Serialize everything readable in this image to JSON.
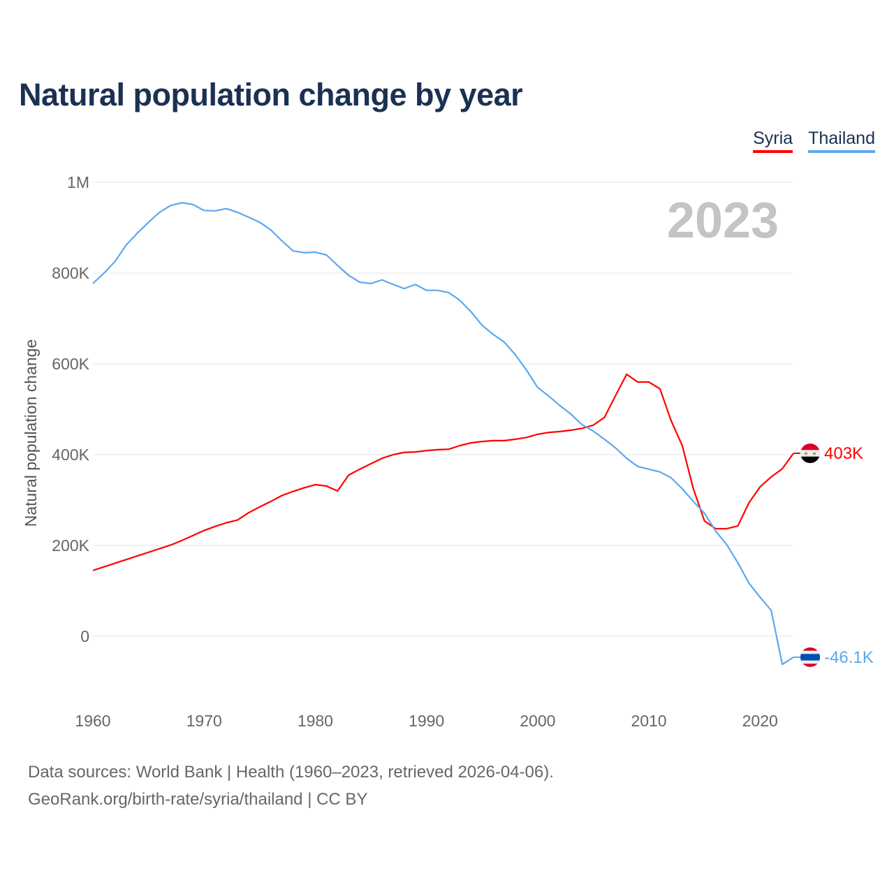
{
  "title": "Natural population change by year",
  "footer": {
    "line1": "Data sources: World Bank | Health (1960–2023, retrieved 2026-04-06).",
    "line2": "GeoRank.org/birth-rate/syria/thailand | CC BY"
  },
  "chart_data": {
    "type": "line",
    "title": "Natural population change by year",
    "xlabel": "",
    "ylabel": "Natural population change",
    "year_watermark": "2023",
    "xlim": [
      1960,
      2023
    ],
    "ylim": [
      -150000,
      1000000
    ],
    "x_ticks": [
      1960,
      1970,
      1980,
      1990,
      2000,
      2010,
      2020
    ],
    "x_tick_labels": [
      "1960",
      "1970",
      "1980",
      "1990",
      "2000",
      "2010",
      "2020"
    ],
    "y_ticks": [
      0,
      200000,
      400000,
      600000,
      800000,
      1000000
    ],
    "y_tick_labels": [
      "0",
      "200K",
      "400K",
      "600K",
      "800K",
      "1M"
    ],
    "grid": true,
    "legend_position": "top-right",
    "series": [
      {
        "name": "Syria",
        "color": "#ff0000",
        "end_label": "403K",
        "flag": "syria-flag",
        "values": [
          145,
          153,
          161,
          169,
          177,
          185,
          193,
          201,
          211,
          222,
          233,
          242,
          250,
          256,
          272,
          285,
          297,
          310,
          319,
          327,
          334,
          331,
          320,
          355,
          368,
          380,
          392,
          400,
          405,
          406,
          409,
          411,
          412,
          420,
          426,
          429,
          431,
          431,
          434,
          438,
          445,
          449,
          451,
          454,
          458,
          465,
          482,
          530,
          577,
          560,
          560,
          545,
          475,
          420,
          325,
          254,
          237,
          237,
          243,
          294,
          329,
          351,
          369,
          403
        ]
      },
      {
        "name": "Thailand",
        "color": "#5ba8ee",
        "end_label": "-46.1K",
        "flag": "thailand-flag",
        "values": [
          777,
          800,
          826,
          862,
          888,
          912,
          934,
          949,
          955,
          951,
          938,
          937,
          942,
          934,
          923,
          912,
          895,
          871,
          849,
          845,
          846,
          840,
          817,
          795,
          780,
          777,
          785,
          775,
          766,
          775,
          762,
          762,
          757,
          740,
          715,
          685,
          665,
          648,
          620,
          586,
          548,
          529,
          508,
          489,
          466,
          452,
          434,
          415,
          392,
          374,
          368,
          362,
          349,
          325,
          297,
          271,
          232,
          202,
          162,
          117,
          86,
          57,
          -62,
          -46.1
        ]
      }
    ],
    "value_unit": "thousands"
  }
}
